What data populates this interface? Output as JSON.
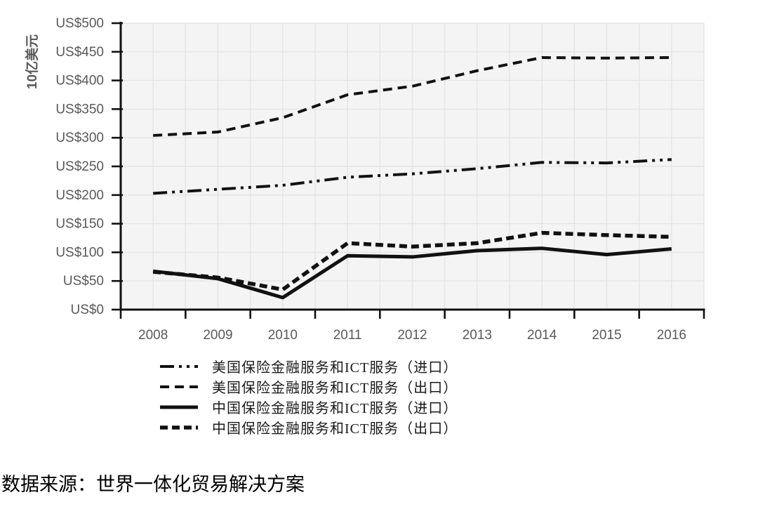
{
  "colors": {
    "line": "#111111",
    "axis": "#111111",
    "tick_text": "#595959",
    "plot_bg": "#f4f4f4",
    "grid": "#e4e4e4"
  },
  "chart_data": {
    "type": "line",
    "x": [
      "2008",
      "2009",
      "2010",
      "2011",
      "2012",
      "2013",
      "2014",
      "2015",
      "2016"
    ],
    "ylabel": "10亿美元",
    "ylim": [
      0,
      500
    ],
    "y_tick_step": 50,
    "y_tick_labels": [
      "US$500",
      "US$450",
      "US$400",
      "US$350",
      "US$300",
      "US$250",
      "US$200",
      "US$150",
      "US$100",
      "US$50",
      "US$0"
    ],
    "grid": true,
    "legend_position": "bottom-left",
    "series": [
      {
        "name": "美国保险金融服务和ICT服务（进口）",
        "style": "dashdotdot",
        "values": [
          203,
          210,
          217,
          231,
          237,
          246,
          257,
          256,
          262
        ]
      },
      {
        "name": "美国保险金融服务和ICT服务（出口）",
        "style": "dashed",
        "values": [
          304,
          310,
          335,
          375,
          390,
          417,
          440,
          439,
          440
        ]
      },
      {
        "name": "中国保险金融服务和ICT服务（进口）",
        "style": "solid",
        "values": [
          67,
          54,
          21,
          94,
          92,
          103,
          107,
          96,
          106
        ]
      },
      {
        "name": "中国保险金融服务和ICT服务（出口）",
        "style": "dashed-thick",
        "values": [
          66,
          56,
          35,
          116,
          110,
          116,
          134,
          130,
          127
        ]
      }
    ]
  },
  "source": {
    "text": "数据来源：世界一体化贸易解决方案"
  }
}
